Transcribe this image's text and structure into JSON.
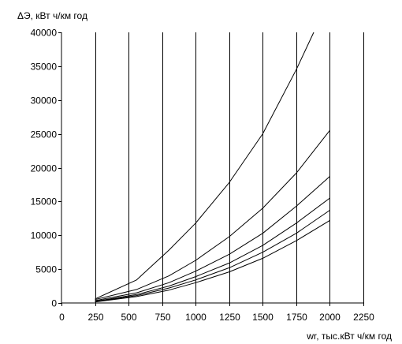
{
  "chart_data": {
    "type": "line",
    "title": "",
    "ylabel": "ΔЭ, кВт ч/км год",
    "xlabel": "wr, тыс.кВт ч/км год",
    "xlim": [
      0,
      2250
    ],
    "ylim": [
      0,
      40000
    ],
    "x_ticks": [
      0,
      250,
      500,
      750,
      1000,
      1250,
      1500,
      1750,
      2000,
      2250
    ],
    "y_ticks": [
      0,
      5000,
      10000,
      15000,
      20000,
      25000,
      30000,
      35000,
      40000
    ],
    "grid": "vertical",
    "legend": "none",
    "series": [
      {
        "x": [
          250,
          560,
          800,
          1000,
          1250,
          1500,
          1750,
          1880
        ],
        "values": [
          600,
          3400,
          7800,
          11800,
          17800,
          25000,
          34500,
          40000
        ]
      },
      {
        "x": [
          250,
          560,
          800,
          1000,
          1250,
          1500,
          1750,
          2000
        ],
        "values": [
          500,
          2000,
          4000,
          6300,
          9800,
          14000,
          19200,
          25500
        ]
      },
      {
        "x": [
          250,
          560,
          800,
          1000,
          1250,
          1500,
          1750,
          2000
        ],
        "values": [
          350,
          1500,
          3000,
          4700,
          7200,
          10300,
          14300,
          18700
        ]
      },
      {
        "x": [
          250,
          560,
          800,
          1000,
          1250,
          1500,
          1750,
          2000
        ],
        "values": [
          250,
          1250,
          2500,
          3900,
          5900,
          8500,
          11800,
          15500
        ]
      },
      {
        "x": [
          250,
          560,
          800,
          1000,
          1250,
          1500,
          1750,
          2000
        ],
        "values": [
          200,
          1100,
          2200,
          3400,
          5200,
          7500,
          10300,
          13700
        ]
      },
      {
        "x": [
          250,
          560,
          800,
          1000,
          1250,
          1500,
          1750,
          2000
        ],
        "values": [
          150,
          950,
          1900,
          3000,
          4600,
          6600,
          9200,
          12200
        ]
      }
    ]
  }
}
